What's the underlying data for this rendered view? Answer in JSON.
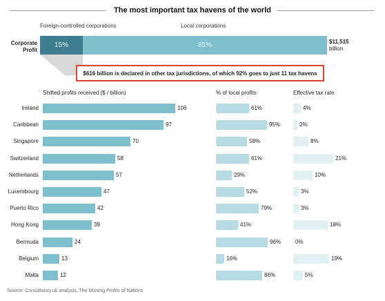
{
  "title": "The most important tax havens of the world",
  "profit_section": {
    "foreign_label": "Foreign-controlled corporations",
    "local_label": "Local corporations",
    "row_label": "Corporate Profit",
    "foreign_pct_label": "15%",
    "local_pct_label": "85%",
    "foreign_share": 15,
    "local_share": 85,
    "total_value": "$11,515",
    "total_unit": "billion",
    "colors": {
      "foreign": "#3f7d90",
      "local": "#7fbfcd"
    }
  },
  "callout": "$616 billion is declared in other tax jurisdictions, of which 92% goes to just 11 tax havens",
  "columns": {
    "shifted": "Shifted profits received ($ / billion)",
    "local": "% of local profits",
    "tax": "Effective tax rate"
  },
  "source": "Source: Consultancy.uk analysis, The Missing Profits of Nations",
  "chart_data": {
    "type": "bar",
    "orientation": "horizontal",
    "title": "The most important tax havens of the world",
    "categories": [
      "Ireland",
      "Caribbean",
      "Singapore",
      "Switzerland",
      "Netherlands",
      "Luxembourg",
      "Puerto Rico",
      "Hong Kong",
      "Bermuda",
      "Belgium",
      "Malta"
    ],
    "series": [
      {
        "name": "Shifted profits received ($ / billion)",
        "values": [
          106,
          97,
          70,
          58,
          57,
          47,
          42,
          39,
          24,
          13,
          12
        ],
        "labels": [
          "106",
          "97",
          "70",
          "58",
          "57",
          "47",
          "42",
          "39",
          "24",
          "13",
          "12"
        ],
        "xlim": [
          0,
          110
        ],
        "color": "#7fbfcd"
      },
      {
        "name": "% of local profits",
        "values": [
          61,
          95,
          58,
          61,
          29,
          52,
          79,
          41,
          96,
          16,
          86
        ],
        "labels": [
          "61%",
          "95%",
          "58%",
          "61%",
          "29%",
          "52%",
          "79%",
          "41%",
          "96%",
          "16%",
          "86%"
        ],
        "xlim": [
          0,
          100
        ],
        "color": "#b6dbe3"
      },
      {
        "name": "Effective tax rate",
        "values": [
          4,
          2,
          8,
          21,
          10,
          3,
          3,
          18,
          0,
          19,
          5
        ],
        "labels": [
          "4%",
          "2%",
          "8%",
          "21%",
          "10%",
          "3%",
          "3%",
          "18%",
          "0%",
          "19%",
          "5%"
        ],
        "xlim": [
          0,
          21
        ],
        "color": "#e0f0f3"
      }
    ]
  }
}
